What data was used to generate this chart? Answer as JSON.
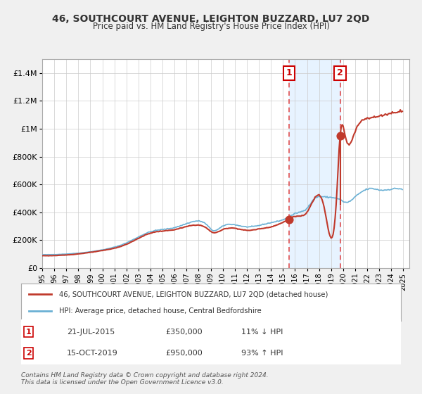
{
  "title": "46, SOUTHCOURT AVENUE, LEIGHTON BUZZARD, LU7 2QD",
  "subtitle": "Price paid vs. HM Land Registry's House Price Index (HPI)",
  "legend_line1": "46, SOUTHCOURT AVENUE, LEIGHTON BUZZARD, LU7 2QD (detached house)",
  "legend_line2": "HPI: Average price, detached house, Central Bedfordshire",
  "sale1_date": "2015-07-21",
  "sale1_price": 350000,
  "sale1_label": "21-JUL-2015",
  "sale1_pct": "11%",
  "sale1_dir": "↓",
  "sale2_date": "2019-10-15",
  "sale2_price": 950000,
  "sale2_label": "15-OCT-2019",
  "sale2_pct": "93%",
  "sale2_dir": "↑",
  "footnote1": "Contains HM Land Registry data © Crown copyright and database right 2024.",
  "footnote2": "This data is licensed under the Open Government Licence v3.0.",
  "hpi_color": "#6ab0d4",
  "price_color": "#c0392b",
  "dashed_color": "#e05050",
  "shade_color": "#ddeeff",
  "background_color": "#f5f5f5",
  "grid_color": "#cccccc",
  "ylim_max": 1500000,
  "xlabel_start": 1995,
  "xlabel_end": 2025
}
